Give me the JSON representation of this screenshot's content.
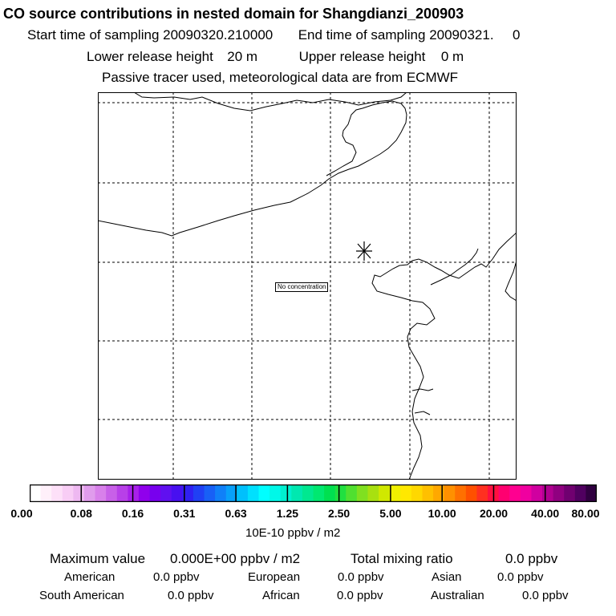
{
  "header": {
    "title": "CO  source contributions in nested domain for Shangdianzi_200903",
    "start_label": "Start time of sampling",
    "start_value": "20090320.210000",
    "end_label": "End time of sampling",
    "end_value": "20090321.",
    "end_suffix": "0",
    "lower_label": "Lower release height",
    "lower_value": "20 m",
    "upper_label": "Upper release height",
    "upper_value": "0 m",
    "note": "Passive tracer used, meteorological data are from ECMWF"
  },
  "map": {
    "no_concentration_label": "No concentration",
    "station_marker": "asterisk-icon",
    "border_color": "#000000"
  },
  "colorbar": {
    "ticks": [
      "0.00",
      "0.08",
      "0.16",
      "0.31",
      "0.63",
      "1.25",
      "2.50",
      "5.00",
      "10.00",
      "20.00",
      "40.00",
      "80.00"
    ],
    "unit": "10E-10 ppbv / m2",
    "colors": [
      "#ffffff",
      "#fff0fa",
      "#fde0f8",
      "#f8cdf5",
      "#eeb8f1",
      "#e09cec",
      "#d880ea",
      "#c860e8",
      "#b840e8",
      "#a820ea",
      "#9000ec",
      "#7800ee",
      "#6010f0",
      "#4810f0",
      "#3020f2",
      "#2040f4",
      "#1860f6",
      "#1080f8",
      "#08a0fa",
      "#00c0fc",
      "#00e0fe",
      "#00ffff",
      "#00f8e8",
      "#00f0d0",
      "#00e8b0",
      "#00e890",
      "#00e870",
      "#00e050",
      "#20e040",
      "#50e030",
      "#80e020",
      "#a8e010",
      "#d0e800",
      "#f0f000",
      "#ffe800",
      "#ffd800",
      "#ffc000",
      "#ffa800",
      "#ff9000",
      "#ff7000",
      "#ff5000",
      "#ff3020",
      "#ff1040",
      "#ff0070",
      "#ff0090",
      "#f000a0",
      "#d000a0",
      "#b00090",
      "#900080",
      "#700070",
      "#500060",
      "#300040"
    ]
  },
  "summary": {
    "max_label": "Maximum value",
    "max_value": "0.000E+00 ppbv / m2",
    "total_label": "Total mixing ratio",
    "total_value": "0.0 ppbv",
    "regions": [
      {
        "name": "American",
        "value": "0.0 ppbv"
      },
      {
        "name": "European",
        "value": "0.0 ppbv"
      },
      {
        "name": "Asian",
        "value": "0.0 ppbv"
      },
      {
        "name": "South American",
        "value": "0.0 ppbv"
      },
      {
        "name": "African",
        "value": "0.0 ppbv"
      },
      {
        "name": "Australian",
        "value": "0.0 ppbv"
      }
    ]
  }
}
